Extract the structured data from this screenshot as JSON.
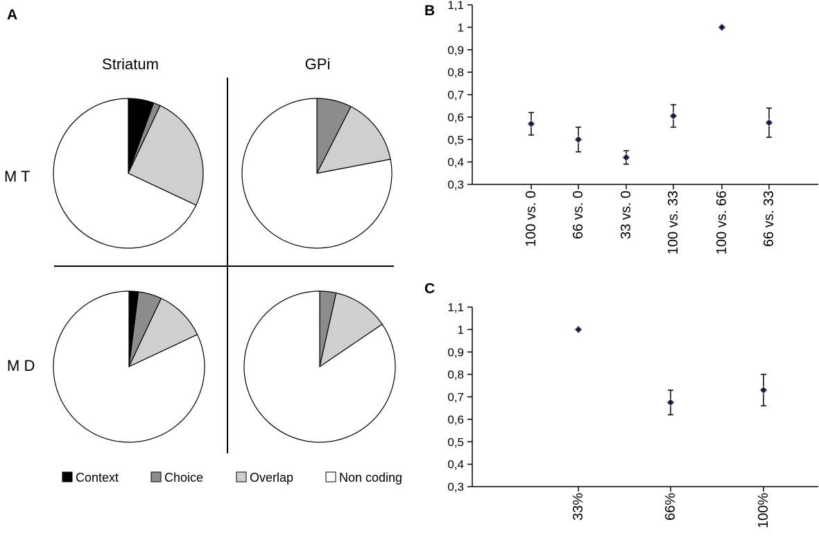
{
  "panels": {
    "a": "A",
    "b": "B",
    "c": "C"
  },
  "pie_columns": [
    "Striatum",
    "GPi"
  ],
  "pie_rows": [
    "M T",
    "M D"
  ],
  "legend": [
    {
      "label": "Context",
      "color": "#000000"
    },
    {
      "label": "Choice",
      "color": "#8c8c8c"
    },
    {
      "label": "Overlap",
      "color": "#cfcfcf"
    },
    {
      "label": "Non coding",
      "color": "#ffffff"
    }
  ],
  "chart_data": [
    {
      "type": "pie",
      "title": "Striatum",
      "row": "M T",
      "categories": [
        "Context",
        "Choice",
        "Overlap",
        "Non coding"
      ],
      "values": [
        5.5,
        1.5,
        25,
        68
      ]
    },
    {
      "type": "pie",
      "title": "GPi",
      "row": "M T",
      "categories": [
        "Context",
        "Choice",
        "Overlap",
        "Non coding"
      ],
      "values": [
        0,
        7.5,
        14.5,
        78
      ]
    },
    {
      "type": "pie",
      "title": "Striatum",
      "row": "M D",
      "categories": [
        "Context",
        "Choice",
        "Overlap",
        "Non coding"
      ],
      "values": [
        2,
        5,
        11,
        82
      ]
    },
    {
      "type": "pie",
      "title": "GPi",
      "row": "M D",
      "categories": [
        "Context",
        "Choice",
        "Overlap",
        "Non coding"
      ],
      "values": [
        0,
        3.5,
        12,
        84.5
      ]
    },
    {
      "type": "scatter",
      "panel": "B",
      "categories": [
        "100 vs. 0",
        "66 vs. 0",
        "33 vs. 0",
        "100 vs. 33",
        "100 vs. 66",
        "66 vs. 33"
      ],
      "values": [
        0.57,
        0.5,
        0.42,
        0.605,
        1.0,
        0.575
      ],
      "errors": [
        0.05,
        0.055,
        0.03,
        0.05,
        0,
        0.065
      ],
      "ylim": [
        0.3,
        1.1
      ],
      "yticks": [
        "0,3",
        "0,4",
        "0,5",
        "0,6",
        "0,7",
        "0,8",
        "0,9",
        "1",
        "1,1"
      ],
      "xlabel": "",
      "ylabel": ""
    },
    {
      "type": "scatter",
      "panel": "C",
      "categories": [
        "33%",
        "66%",
        "100%"
      ],
      "values": [
        1.0,
        0.675,
        0.73
      ],
      "errors": [
        0,
        0.055,
        0.07
      ],
      "ylim": [
        0.3,
        1.1
      ],
      "yticks": [
        "0,3",
        "0,4",
        "0,5",
        "0,6",
        "0,7",
        "0,8",
        "0,9",
        "1",
        "1,1"
      ],
      "xlabel": "",
      "ylabel": ""
    }
  ]
}
